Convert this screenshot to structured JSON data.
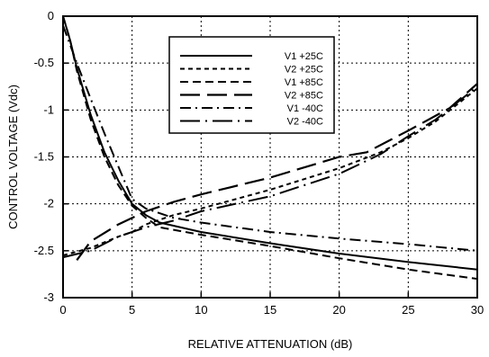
{
  "chart_data": {
    "type": "line",
    "title": "",
    "xlabel": "RELATIVE ATTENUATION (dB)",
    "ylabel": "CONTROL VOLTAGE (Vdc)",
    "xlim": [
      0,
      30
    ],
    "ylim": [
      -3,
      0
    ],
    "xticks": [
      "0",
      "5",
      "10",
      "15",
      "20",
      "25",
      "30"
    ],
    "yticks": [
      "0",
      "-0.5",
      "-1",
      "-1.5",
      "-2",
      "-2.5",
      "-3"
    ],
    "grid": true,
    "legend_position": "top-right",
    "series": [
      {
        "name": "V1 +25C",
        "dash": "solid",
        "points": [
          [
            0,
            0
          ],
          [
            0.5,
            -0.25
          ],
          [
            1,
            -0.55
          ],
          [
            1.5,
            -0.8
          ],
          [
            2,
            -1.05
          ],
          [
            3,
            -1.45
          ],
          [
            4,
            -1.75
          ],
          [
            5,
            -2.0
          ],
          [
            6,
            -2.12
          ],
          [
            7,
            -2.2
          ],
          [
            10,
            -2.3
          ],
          [
            15,
            -2.42
          ],
          [
            20,
            -2.53
          ],
          [
            25,
            -2.62
          ],
          [
            30,
            -2.7
          ]
        ]
      },
      {
        "name": "V2 +25C",
        "dash": "short-dot",
        "points": [
          [
            0,
            -2.55
          ],
          [
            2,
            -2.47
          ],
          [
            4,
            -2.35
          ],
          [
            5,
            -2.3
          ],
          [
            6,
            -2.22
          ],
          [
            8,
            -2.12
          ],
          [
            10,
            -2.05
          ],
          [
            15,
            -1.85
          ],
          [
            20,
            -1.62
          ],
          [
            23,
            -1.45
          ],
          [
            25,
            -1.3
          ],
          [
            27,
            -1.12
          ],
          [
            30,
            -0.77
          ]
        ]
      },
      {
        "name": "V1 +85C",
        "dash": "medium",
        "points": [
          [
            0,
            0
          ],
          [
            0.5,
            -0.25
          ],
          [
            1,
            -0.58
          ],
          [
            2,
            -1.1
          ],
          [
            3,
            -1.5
          ],
          [
            4,
            -1.8
          ],
          [
            5,
            -2.02
          ],
          [
            6,
            -2.15
          ],
          [
            7,
            -2.25
          ],
          [
            10,
            -2.33
          ],
          [
            15,
            -2.45
          ],
          [
            20,
            -2.58
          ],
          [
            25,
            -2.7
          ],
          [
            30,
            -2.8
          ]
        ]
      },
      {
        "name": "V2 +85C",
        "dash": "long",
        "points": [
          [
            1,
            -2.6
          ],
          [
            2,
            -2.4
          ],
          [
            4,
            -2.22
          ],
          [
            6,
            -2.08
          ],
          [
            8,
            -1.98
          ],
          [
            10,
            -1.9
          ],
          [
            15,
            -1.72
          ],
          [
            20,
            -1.5
          ],
          [
            22,
            -1.45
          ],
          [
            25,
            -1.22
          ],
          [
            28,
            -0.98
          ],
          [
            30,
            -0.72
          ]
        ]
      },
      {
        "name": "V1 -40C",
        "dash": "dash-dot",
        "points": [
          [
            0,
            -0.1
          ],
          [
            1,
            -0.5
          ],
          [
            2,
            -0.88
          ],
          [
            3,
            -1.25
          ],
          [
            4,
            -1.6
          ],
          [
            5,
            -1.95
          ],
          [
            6,
            -2.05
          ],
          [
            8,
            -2.15
          ],
          [
            10,
            -2.2
          ],
          [
            15,
            -2.3
          ],
          [
            20,
            -2.37
          ],
          [
            25,
            -2.43
          ],
          [
            30,
            -2.5
          ]
        ]
      },
      {
        "name": "V2 -40C",
        "dash": "long-dot",
        "points": [
          [
            0,
            -2.57
          ],
          [
            2,
            -2.5
          ],
          [
            4,
            -2.35
          ],
          [
            6,
            -2.25
          ],
          [
            8,
            -2.18
          ],
          [
            10,
            -2.08
          ],
          [
            15,
            -1.92
          ],
          [
            20,
            -1.68
          ],
          [
            23,
            -1.47
          ],
          [
            25,
            -1.28
          ],
          [
            27,
            -1.1
          ],
          [
            30,
            -0.75
          ]
        ]
      }
    ]
  }
}
